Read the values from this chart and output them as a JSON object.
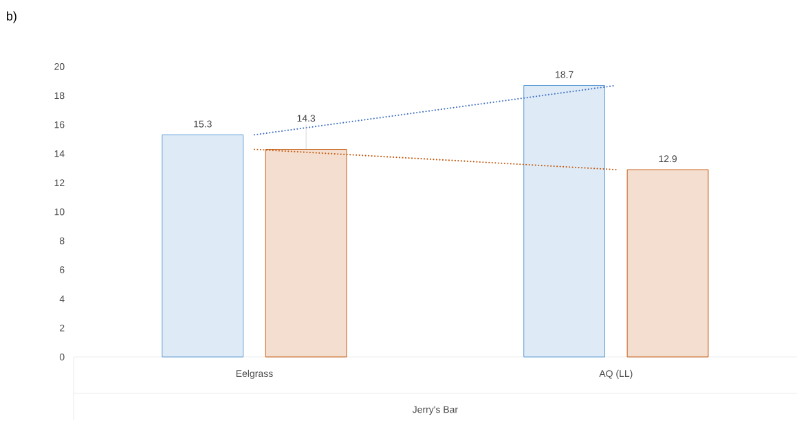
{
  "chart_data": {
    "type": "bar",
    "title": "b)",
    "xlabel": "Jerry's Bar",
    "categories": [
      "Eelgrass",
      "AQ (LL)"
    ],
    "series": [
      {
        "color": "#5b9bd5",
        "values": [
          15.3,
          18.7
        ],
        "value_labels": [
          "15.3",
          "18.7"
        ]
      },
      {
        "color": "#c55a11",
        "values": [
          14.3,
          12.9
        ],
        "value_labels": [
          "14.3",
          "12.9"
        ]
      },
      {
        "type": "line",
        "color": "#4472c4",
        "x": [
          "Eelgrass",
          "AQ (LL)"
        ],
        "values": [
          15.3,
          18.7
        ],
        "line_style": "dotted"
      },
      {
        "type": "line",
        "color": "#c55a11",
        "x": [
          "Eelgrass",
          "AQ (LL)"
        ],
        "values": [
          14.3,
          12.9
        ],
        "line_style": "dotted"
      }
    ],
    "ylim": [
      0,
      20
    ],
    "yticks": [
      0,
      2,
      4,
      6,
      8,
      10,
      12,
      14,
      16,
      18,
      20
    ]
  }
}
